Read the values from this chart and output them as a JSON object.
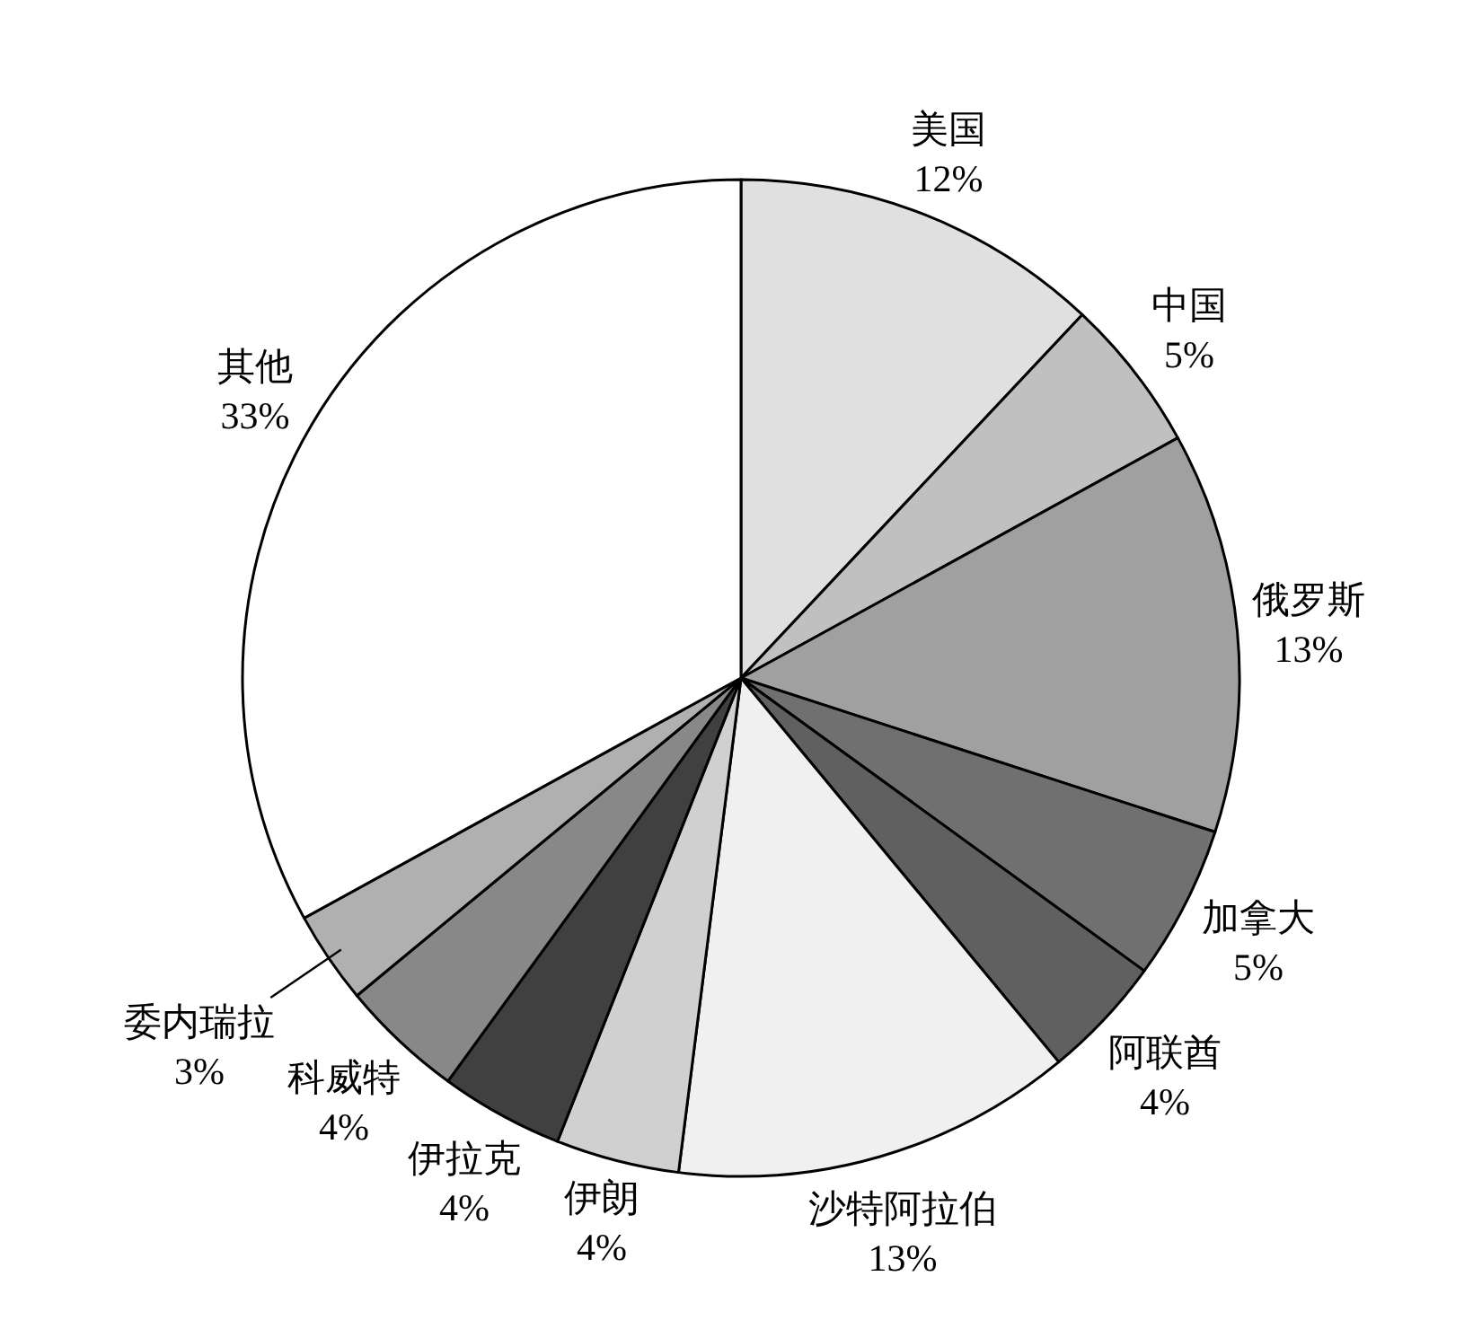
{
  "chart_data": {
    "type": "pie",
    "categories": [
      "美国",
      "中国",
      "俄罗斯",
      "加拿大",
      "阿联酋",
      "沙特阿拉伯",
      "伊朗",
      "伊拉克",
      "科威特",
      "委内瑞拉",
      "其他"
    ],
    "values": [
      12,
      5,
      13,
      5,
      4,
      13,
      4,
      4,
      4,
      3,
      33
    ],
    "value_labels": [
      "12%",
      "5%",
      "13%",
      "5%",
      "4%",
      "13%",
      "4%",
      "4%",
      "4%",
      "3%",
      "33%"
    ],
    "colors": [
      "#e0e0e0",
      "#c0c0c0",
      "#a0a0a0",
      "#707070",
      "#606060",
      "#f0f0f0",
      "#d0d0d0",
      "#404040",
      "#888888",
      "#b0b0b0",
      "#ffffff"
    ],
    "legend": false
  }
}
